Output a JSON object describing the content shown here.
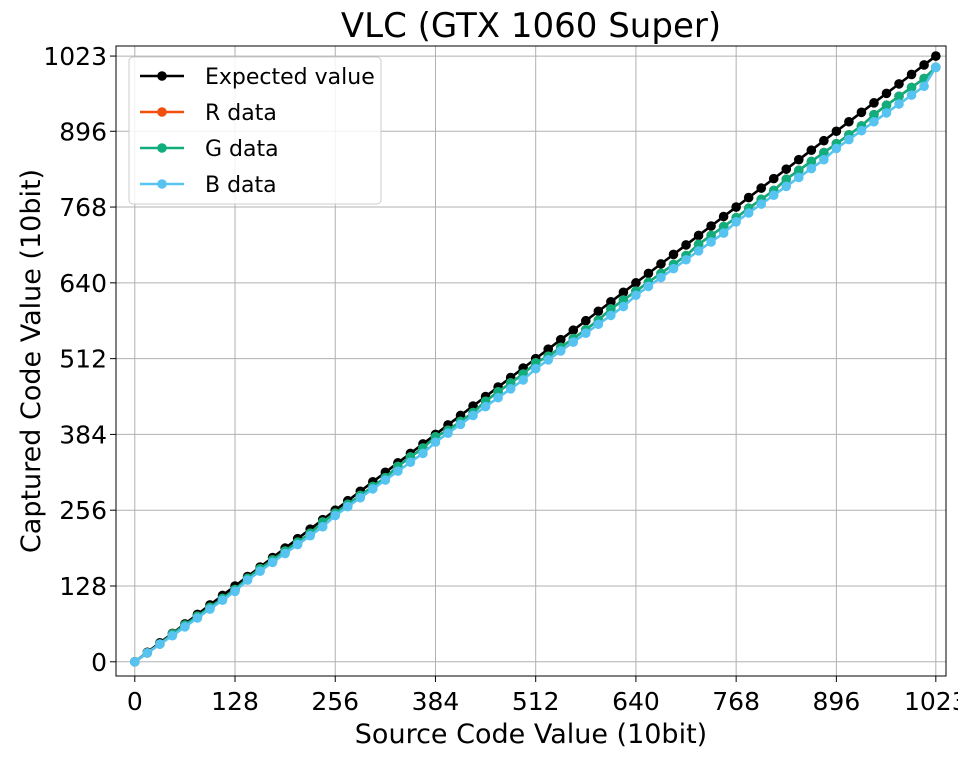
{
  "chart_data": {
    "type": "line",
    "title": "VLC (GTX 1060 Super)",
    "xlabel": "Source Code Value (10bit)",
    "ylabel": "Captured Code Value (10bit)",
    "xlim": [
      -24,
      1036
    ],
    "ylim": [
      -24,
      1040
    ],
    "xticks": [
      0,
      128,
      256,
      384,
      512,
      640,
      768,
      896,
      1023
    ],
    "yticks": [
      0,
      128,
      256,
      384,
      512,
      640,
      768,
      896,
      1023
    ],
    "grid": true,
    "legend_position": "top-left",
    "x": [
      0,
      16,
      32,
      48,
      64,
      80,
      96,
      112,
      128,
      144,
      160,
      176,
      192,
      208,
      224,
      240,
      256,
      272,
      288,
      304,
      320,
      336,
      352,
      368,
      384,
      400,
      416,
      432,
      448,
      464,
      480,
      496,
      512,
      528,
      544,
      560,
      576,
      592,
      608,
      624,
      640,
      656,
      672,
      688,
      704,
      720,
      736,
      752,
      768,
      784,
      800,
      816,
      832,
      848,
      864,
      880,
      896,
      912,
      928,
      944,
      960,
      976,
      992,
      1008,
      1023
    ],
    "series": [
      {
        "name": "Expected value",
        "color": "#000000",
        "values": [
          0,
          16,
          32,
          48,
          64,
          80,
          96,
          112,
          128,
          144,
          160,
          176,
          192,
          208,
          224,
          240,
          256,
          272,
          288,
          304,
          320,
          336,
          352,
          368,
          384,
          400,
          416,
          432,
          448,
          464,
          480,
          496,
          512,
          528,
          544,
          560,
          576,
          592,
          608,
          624,
          640,
          656,
          672,
          688,
          704,
          720,
          736,
          752,
          768,
          784,
          800,
          816,
          832,
          848,
          864,
          880,
          896,
          912,
          928,
          944,
          960,
          976,
          992,
          1008,
          1023
        ]
      },
      {
        "name": "R data",
        "color": "#f24f0d",
        "values": [
          0,
          15,
          30,
          47,
          62,
          77,
          92,
          107,
          122,
          141,
          157,
          172,
          187,
          202,
          217,
          236,
          251,
          266,
          281,
          296,
          311,
          330,
          346,
          361,
          380,
          391,
          406,
          421,
          440,
          456,
          471,
          486,
          505,
          516,
          531,
          546,
          561,
          577,
          596,
          611,
          626,
          641,
          656,
          671,
          686,
          705,
          720,
          735,
          750,
          766,
          781,
          796,
          815,
          830,
          845,
          860,
          875,
          890,
          905,
          924,
          940,
          955,
          970,
          985,
          1004
        ]
      },
      {
        "name": "G data",
        "color": "#11ad7d",
        "values": [
          0,
          15,
          30,
          47,
          62,
          77,
          92,
          107,
          122,
          141,
          157,
          172,
          187,
          202,
          217,
          236,
          251,
          266,
          281,
          296,
          311,
          330,
          346,
          361,
          380,
          391,
          406,
          421,
          440,
          456,
          471,
          486,
          505,
          516,
          531,
          546,
          561,
          577,
          596,
          611,
          626,
          641,
          656,
          671,
          686,
          705,
          720,
          735,
          750,
          766,
          781,
          796,
          815,
          830,
          845,
          860,
          875,
          890,
          905,
          924,
          940,
          955,
          970,
          985,
          1004
        ]
      },
      {
        "name": "B data",
        "color": "#56c3f0",
        "values": [
          0,
          15,
          30,
          44,
          59,
          74,
          89,
          104,
          119,
          138,
          153,
          168,
          183,
          198,
          213,
          228,
          247,
          262,
          277,
          292,
          307,
          322,
          337,
          352,
          371,
          386,
          401,
          416,
          431,
          446,
          461,
          476,
          495,
          510,
          525,
          540,
          555,
          570,
          585,
          600,
          619,
          634,
          649,
          664,
          679,
          694,
          709,
          724,
          743,
          758,
          773,
          788,
          803,
          818,
          833,
          848,
          867,
          882,
          897,
          912,
          927,
          942,
          957,
          972,
          1004
        ]
      }
    ]
  }
}
